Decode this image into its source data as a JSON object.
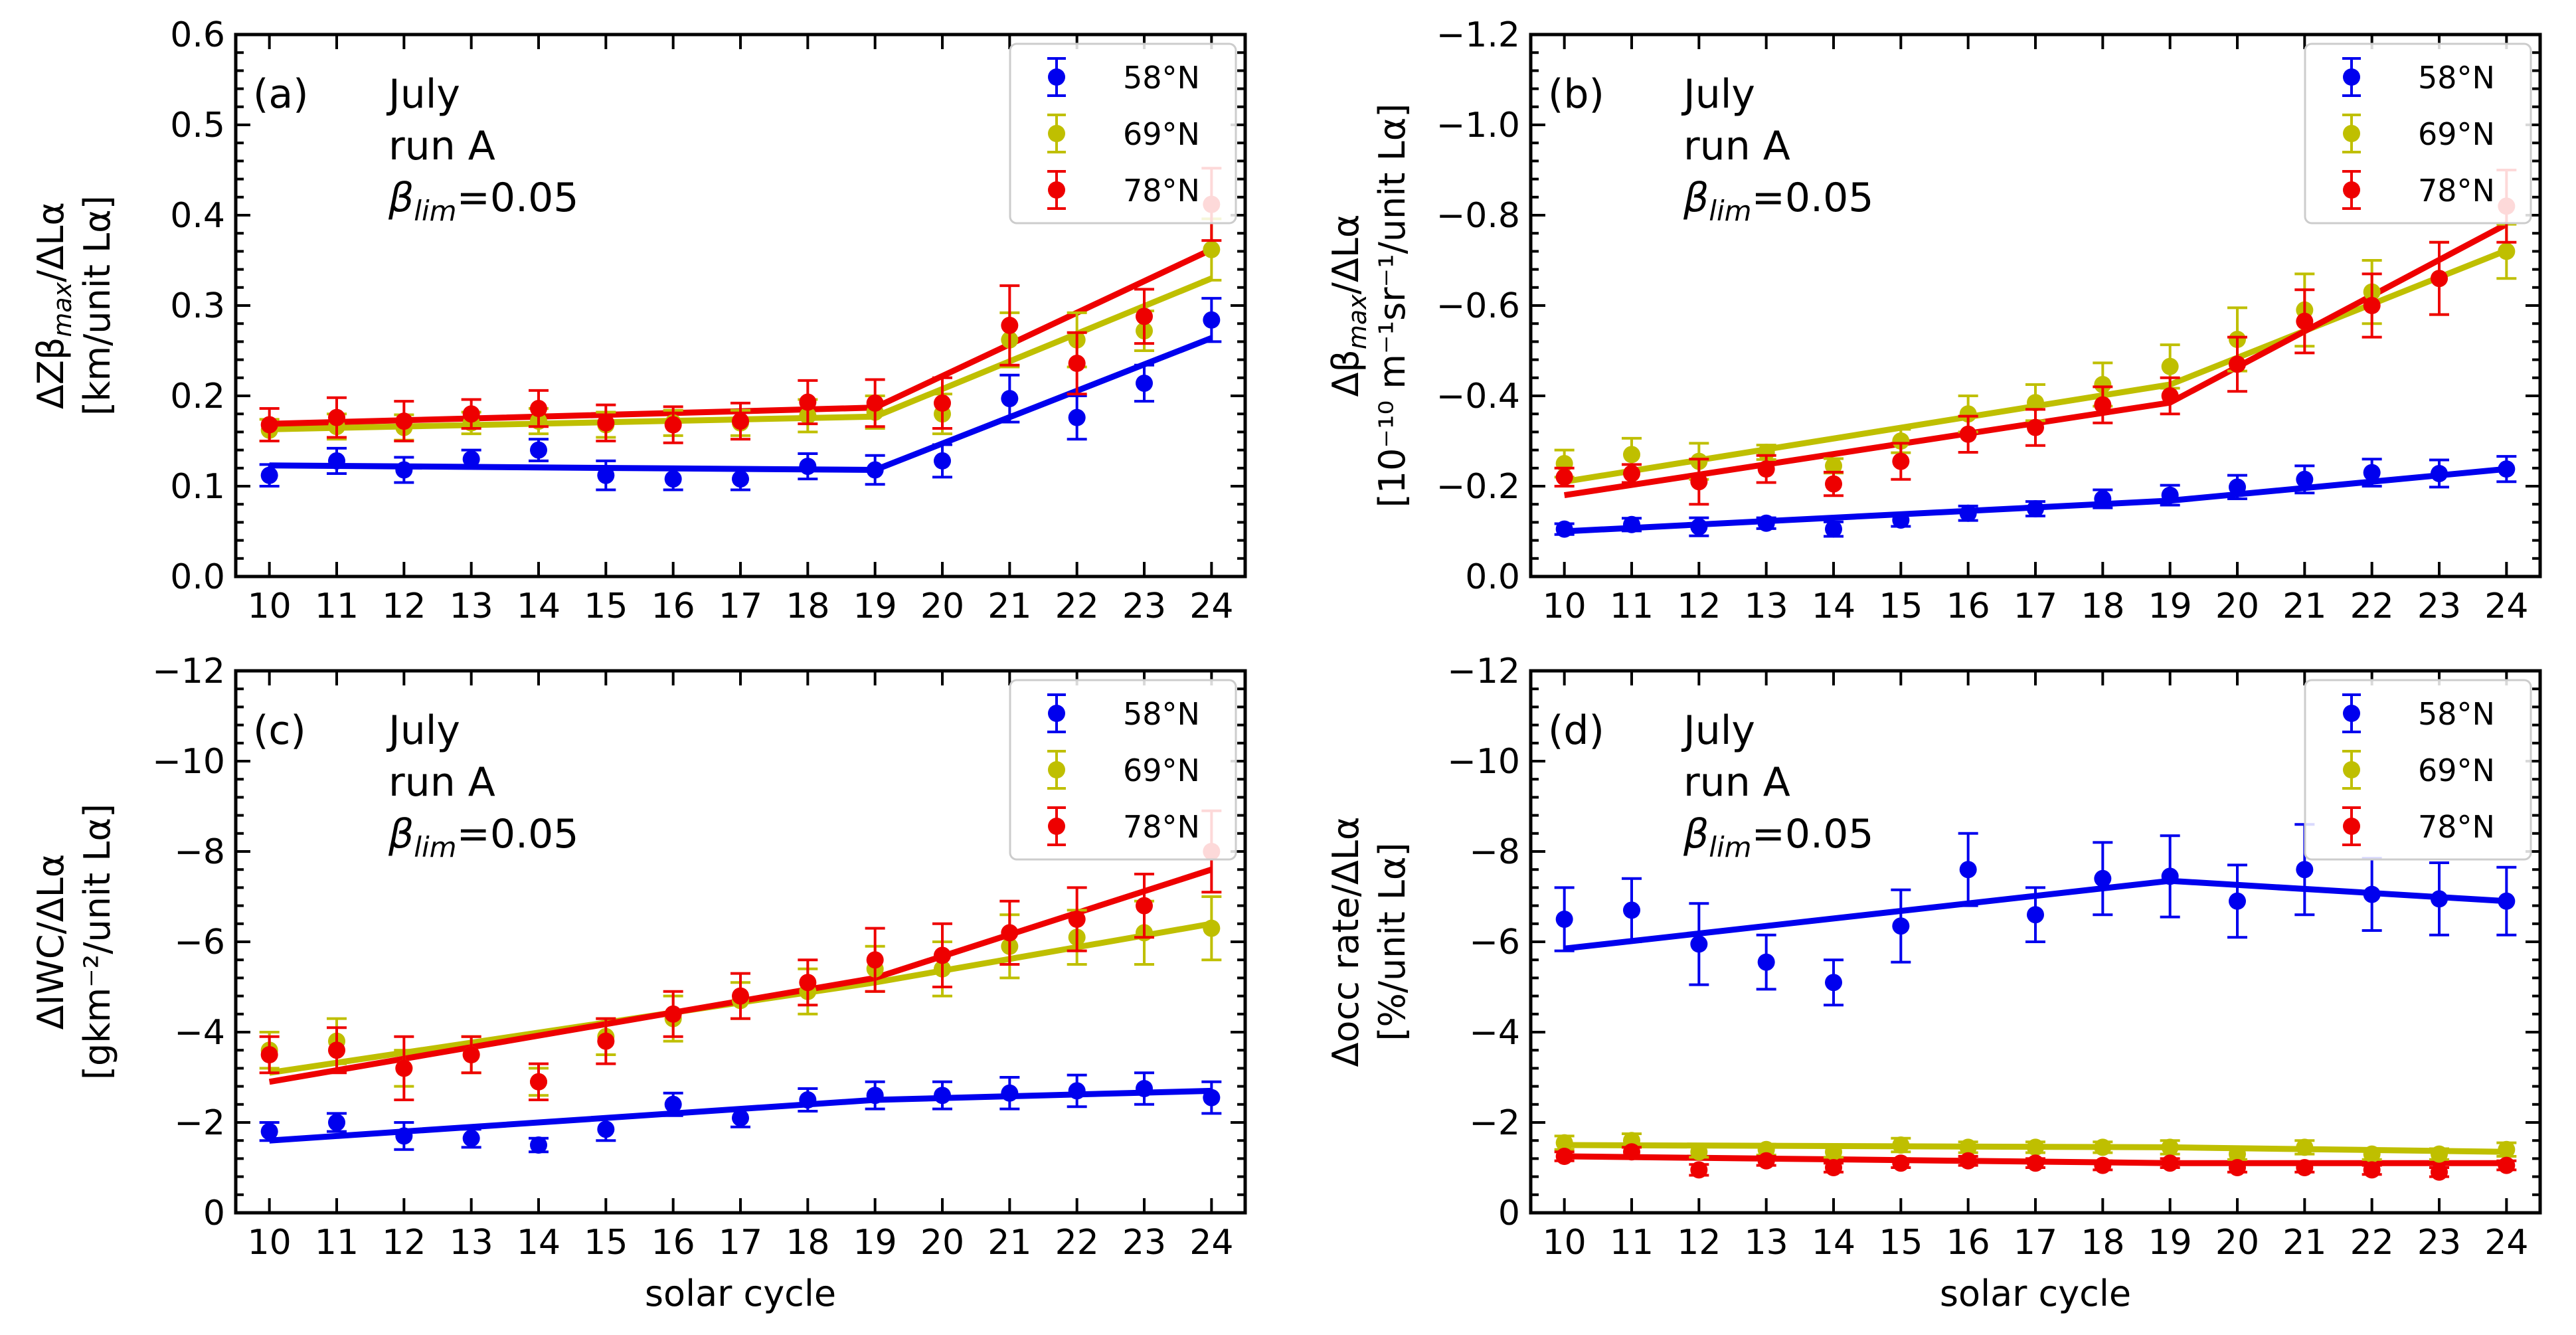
{
  "figure": {
    "colors": {
      "58N": "#0000ee",
      "69N": "#bfbf00",
      "78N": "#ee0000"
    }
  },
  "chart_data": [
    {
      "type": "scatter",
      "panel_label": "(a)",
      "annotation": {
        "line1": "July",
        "line2": "run A",
        "beta_symbol": "β",
        "beta_sub": "lim",
        "beta_value": "=0.05"
      },
      "ylabel_line1": {
        "prefix": "ΔZβ",
        "sub": "max",
        "suffix": "/ΔLα"
      },
      "ylabel_line2": "[km/unit Lα]",
      "xlabel": "",
      "x": [
        10,
        11,
        12,
        13,
        14,
        15,
        16,
        17,
        18,
        19,
        20,
        21,
        22,
        23,
        24
      ],
      "xlim": [
        9.5,
        24.5
      ],
      "ylim": [
        0,
        0.6
      ],
      "y_inverted": false,
      "yticks": [
        0,
        0.1,
        0.2,
        0.3,
        0.4,
        0.5,
        0.6
      ],
      "ytick_labels": [
        "0.0",
        "0.1",
        "0.2",
        "0.3",
        "0.4",
        "0.5",
        "0.6"
      ],
      "legend": [
        "58$^\\circ$N",
        "69$^\\circ$N",
        "78$^\\circ$N"
      ],
      "legend_labels": [
        "58°N",
        "69°N",
        "78°N"
      ],
      "series": [
        {
          "name": "58°N",
          "color_key": "58N",
          "values": [
            0.112,
            0.128,
            0.118,
            0.13,
            0.14,
            0.112,
            0.108,
            0.108,
            0.122,
            0.118,
            0.128,
            0.197,
            0.176,
            0.214,
            0.284
          ],
          "errors": [
            0.012,
            0.014,
            0.014,
            0.01,
            0.012,
            0.016,
            0.012,
            0.012,
            0.014,
            0.016,
            0.018,
            0.026,
            0.024,
            0.02,
            0.024
          ],
          "fit": [
            [
              10,
              0.123
            ],
            [
              19,
              0.118
            ],
            [
              24,
              0.264
            ]
          ]
        },
        {
          "name": "69°N",
          "color_key": "69N",
          "values": [
            0.162,
            0.166,
            0.165,
            0.17,
            0.172,
            0.168,
            0.17,
            0.17,
            0.178,
            0.182,
            0.18,
            0.262,
            0.262,
            0.272,
            0.362
          ],
          "errors": [
            0.012,
            0.014,
            0.014,
            0.012,
            0.014,
            0.014,
            0.014,
            0.014,
            0.018,
            0.018,
            0.022,
            0.03,
            0.03,
            0.022,
            0.034
          ],
          "fit": [
            [
              10,
              0.163
            ],
            [
              19,
              0.177
            ],
            [
              24,
              0.33
            ]
          ]
        },
        {
          "name": "78°N",
          "color_key": "78N",
          "values": [
            0.168,
            0.176,
            0.172,
            0.18,
            0.186,
            0.17,
            0.168,
            0.172,
            0.193,
            0.192,
            0.192,
            0.278,
            0.236,
            0.288,
            0.412
          ],
          "errors": [
            0.018,
            0.022,
            0.022,
            0.016,
            0.02,
            0.02,
            0.02,
            0.02,
            0.024,
            0.026,
            0.028,
            0.044,
            0.034,
            0.03,
            0.04
          ],
          "fit": [
            [
              10,
              0.169
            ],
            [
              19,
              0.187
            ],
            [
              24,
              0.362
            ]
          ]
        }
      ]
    },
    {
      "type": "scatter",
      "panel_label": "(b)",
      "annotation": {
        "line1": "July",
        "line2": "run A",
        "beta_symbol": "β",
        "beta_sub": "lim",
        "beta_value": "=0.05"
      },
      "ylabel_line1": {
        "prefix": "Δβ",
        "sub": "max",
        "suffix": "/ΔLα"
      },
      "ylabel_line2": "[10⁻¹⁰ m⁻¹sr⁻¹/unit Lα]",
      "xlabel": "",
      "x": [
        10,
        11,
        12,
        13,
        14,
        15,
        16,
        17,
        18,
        19,
        20,
        21,
        22,
        23,
        24
      ],
      "xlim": [
        9.5,
        24.5
      ],
      "ylim": [
        0,
        -1.2
      ],
      "y_inverted": true,
      "yticks": [
        0,
        -0.2,
        -0.4,
        -0.6,
        -0.8,
        -1.0,
        -1.2
      ],
      "ytick_labels": [
        "0.0",
        "−0.2",
        "−0.4",
        "−0.6",
        "−0.8",
        "−1.0",
        "−1.2"
      ],
      "legend_labels": [
        "58°N",
        "69°N",
        "78°N"
      ],
      "series": [
        {
          "name": "58°N",
          "color_key": "58N",
          "values": [
            -0.105,
            -0.115,
            -0.11,
            -0.118,
            -0.105,
            -0.125,
            -0.14,
            -0.15,
            -0.172,
            -0.18,
            -0.198,
            -0.215,
            -0.23,
            -0.228,
            -0.238
          ],
          "errors": [
            0.012,
            0.014,
            0.02,
            0.012,
            0.016,
            0.014,
            0.016,
            0.016,
            0.02,
            0.022,
            0.026,
            0.03,
            0.03,
            0.03,
            0.028
          ],
          "fit": [
            [
              10,
              -0.1
            ],
            [
              19,
              -0.168
            ],
            [
              24,
              -0.238
            ]
          ]
        },
        {
          "name": "69°N",
          "color_key": "69N",
          "values": [
            -0.25,
            -0.27,
            -0.255,
            -0.275,
            -0.245,
            -0.3,
            -0.36,
            -0.385,
            -0.425,
            -0.465,
            -0.525,
            -0.59,
            -0.63,
            -0.66,
            -0.72
          ],
          "errors": [
            0.03,
            0.036,
            0.04,
            0.016,
            0.016,
            0.026,
            0.04,
            0.04,
            0.048,
            0.048,
            0.07,
            0.08,
            0.07,
            0.08,
            0.06
          ],
          "fit": [
            [
              10,
              -0.21
            ],
            [
              19,
              -0.425
            ],
            [
              24,
              -0.722
            ]
          ]
        },
        {
          "name": "78°N",
          "color_key": "78N",
          "values": [
            -0.22,
            -0.228,
            -0.21,
            -0.238,
            -0.205,
            -0.255,
            -0.315,
            -0.33,
            -0.38,
            -0.4,
            -0.47,
            -0.565,
            -0.6,
            -0.66,
            -0.82
          ],
          "errors": [
            0.02,
            0.02,
            0.05,
            0.03,
            0.026,
            0.04,
            0.04,
            0.04,
            0.04,
            0.04,
            0.06,
            0.07,
            0.07,
            0.08,
            0.08
          ],
          "fit": [
            [
              10,
              -0.18
            ],
            [
              19,
              -0.385
            ],
            [
              24,
              -0.78
            ]
          ]
        }
      ]
    },
    {
      "type": "scatter",
      "panel_label": "(c)",
      "annotation": {
        "line1": "July",
        "line2": "run A",
        "beta_symbol": "β",
        "beta_sub": "lim",
        "beta_value": "=0.05"
      },
      "ylabel_line1": "ΔIWC/ΔLα",
      "ylabel_line2": "[gkm⁻²/unit Lα]",
      "xlabel": "solar cycle",
      "x": [
        10,
        11,
        12,
        13,
        14,
        15,
        16,
        17,
        18,
        19,
        20,
        21,
        22,
        23,
        24
      ],
      "xlim": [
        9.5,
        24.5
      ],
      "ylim": [
        0,
        -12
      ],
      "y_inverted": true,
      "yticks": [
        0,
        -2,
        -4,
        -6,
        -8,
        -10,
        -12
      ],
      "ytick_labels": [
        "0",
        "−2",
        "−4",
        "−6",
        "−8",
        "−10",
        "−12"
      ],
      "legend_labels": [
        "58°N",
        "69°N",
        "78°N"
      ],
      "series": [
        {
          "name": "58°N",
          "color_key": "58N",
          "values": [
            -1.8,
            -2.0,
            -1.7,
            -1.65,
            -1.5,
            -1.85,
            -2.4,
            -2.1,
            -2.5,
            -2.6,
            -2.6,
            -2.65,
            -2.7,
            -2.75,
            -2.55
          ],
          "errors": [
            0.2,
            0.2,
            0.3,
            0.2,
            0.15,
            0.25,
            0.25,
            0.2,
            0.25,
            0.3,
            0.3,
            0.35,
            0.35,
            0.35,
            0.35
          ],
          "fit": [
            [
              10,
              -1.6
            ],
            [
              19,
              -2.5
            ],
            [
              24,
              -2.7
            ]
          ]
        },
        {
          "name": "69°N",
          "color_key": "69N",
          "values": [
            -3.6,
            -3.8,
            -3.2,
            -3.5,
            -2.9,
            -3.9,
            -4.3,
            -4.7,
            -4.9,
            -5.4,
            -5.4,
            -5.9,
            -6.1,
            -6.2,
            -6.3
          ],
          "errors": [
            0.4,
            0.5,
            0.4,
            0.4,
            0.3,
            0.4,
            0.5,
            0.4,
            0.5,
            0.5,
            0.6,
            0.7,
            0.6,
            0.7,
            0.7
          ],
          "fit": [
            [
              10,
              -3.1
            ],
            [
              19,
              -5.1
            ],
            [
              24,
              -6.4
            ]
          ]
        },
        {
          "name": "78°N",
          "color_key": "78N",
          "values": [
            -3.5,
            -3.6,
            -3.2,
            -3.5,
            -2.9,
            -3.8,
            -4.4,
            -4.8,
            -5.1,
            -5.6,
            -5.7,
            -6.2,
            -6.5,
            -6.8,
            -8.0
          ],
          "errors": [
            0.4,
            0.5,
            0.7,
            0.4,
            0.4,
            0.5,
            0.5,
            0.5,
            0.5,
            0.7,
            0.7,
            0.7,
            0.7,
            0.7,
            0.9
          ],
          "fit": [
            [
              10,
              -2.9
            ],
            [
              19,
              -5.2
            ],
            [
              24,
              -7.6
            ]
          ]
        }
      ]
    },
    {
      "type": "scatter",
      "panel_label": "(d)",
      "annotation": {
        "line1": "July",
        "line2": "run A",
        "beta_symbol": "β",
        "beta_sub": "lim",
        "beta_value": "=0.05"
      },
      "ylabel_line1": "Δocc rate/ΔLα",
      "ylabel_line2": "[%/unit Lα]",
      "xlabel": "solar cycle",
      "x": [
        10,
        11,
        12,
        13,
        14,
        15,
        16,
        17,
        18,
        19,
        20,
        21,
        22,
        23,
        24
      ],
      "xlim": [
        9.5,
        24.5
      ],
      "ylim": [
        0,
        -12
      ],
      "y_inverted": true,
      "yticks": [
        0,
        -2,
        -4,
        -6,
        -8,
        -10,
        -12
      ],
      "ytick_labels": [
        "0",
        "−2",
        "−4",
        "−6",
        "−8",
        "−10",
        "−12"
      ],
      "legend_labels": [
        "58°N",
        "69°N",
        "78°N"
      ],
      "series": [
        {
          "name": "58°N",
          "color_key": "58N",
          "values": [
            -6.5,
            -6.7,
            -5.95,
            -5.55,
            -5.1,
            -6.35,
            -7.6,
            -6.6,
            -7.4,
            -7.45,
            -6.9,
            -7.6,
            -7.05,
            -6.95,
            -6.9
          ],
          "errors": [
            0.7,
            0.7,
            0.9,
            0.6,
            0.5,
            0.8,
            0.8,
            0.6,
            0.8,
            0.9,
            0.8,
            1.0,
            0.8,
            0.8,
            0.75
          ],
          "fit": [
            [
              10,
              -5.85
            ],
            [
              19,
              -7.35
            ],
            [
              24,
              -6.9
            ]
          ]
        },
        {
          "name": "69°N",
          "color_key": "69N",
          "values": [
            -1.55,
            -1.6,
            -1.35,
            -1.4,
            -1.35,
            -1.5,
            -1.45,
            -1.45,
            -1.45,
            -1.45,
            -1.3,
            -1.45,
            -1.3,
            -1.3,
            -1.4
          ],
          "errors": [
            0.15,
            0.15,
            0.12,
            0.12,
            0.12,
            0.15,
            0.12,
            0.12,
            0.12,
            0.15,
            0.12,
            0.15,
            0.12,
            0.12,
            0.15
          ],
          "fit": [
            [
              10,
              -1.5
            ],
            [
              19,
              -1.45
            ],
            [
              24,
              -1.35
            ]
          ]
        },
        {
          "name": "78°N",
          "color_key": "78N",
          "values": [
            -1.25,
            -1.35,
            -0.95,
            -1.15,
            -1.0,
            -1.1,
            -1.15,
            -1.1,
            -1.05,
            -1.1,
            -1.0,
            -1.0,
            -0.95,
            -0.9,
            -1.05
          ],
          "errors": [
            0.1,
            0.1,
            0.12,
            0.1,
            0.1,
            0.1,
            0.1,
            0.1,
            0.1,
            0.1,
            0.1,
            0.1,
            0.1,
            0.1,
            0.1
          ],
          "fit": [
            [
              10,
              -1.25
            ],
            [
              19,
              -1.1
            ],
            [
              24,
              -1.1
            ]
          ]
        }
      ]
    }
  ]
}
